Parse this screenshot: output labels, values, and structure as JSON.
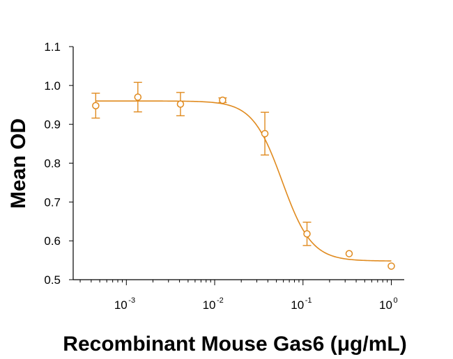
{
  "chart_data": {
    "type": "scatter",
    "title": "",
    "xlabel": "Recombinant Mouse Gas6 (μg/mL)",
    "ylabel": "Mean OD",
    "xscale": "log",
    "xlim": [
      0.00025,
      1.4
    ],
    "ylim": [
      0.5,
      1.1
    ],
    "yticks": [
      "0.5",
      "0.6",
      "0.7",
      "0.8",
      "0.9",
      "1.0",
      "1.1"
    ],
    "xticks": [
      {
        "base": "10",
        "exp": "-3",
        "value": 0.001
      },
      {
        "base": "10",
        "exp": "-2",
        "value": 0.01
      },
      {
        "base": "10",
        "exp": "-1",
        "value": 0.1
      },
      {
        "base": "10",
        "exp": "0",
        "value": 1
      }
    ],
    "grid": false,
    "legend": "none",
    "color": "#E08A1E",
    "points": [
      {
        "x": 0.00045,
        "y": 0.948,
        "err": 0.032
      },
      {
        "x": 0.00135,
        "y": 0.97,
        "err": 0.038
      },
      {
        "x": 0.0041,
        "y": 0.952,
        "err": 0.03
      },
      {
        "x": 0.0123,
        "y": 0.962,
        "err": 0.006
      },
      {
        "x": 0.037,
        "y": 0.876,
        "err": 0.055
      },
      {
        "x": 0.111,
        "y": 0.618,
        "err": 0.03
      },
      {
        "x": 0.333,
        "y": 0.567,
        "err": 0
      },
      {
        "x": 1.0,
        "y": 0.535,
        "err": 0
      }
    ],
    "fit_curve": {
      "model": "4PL",
      "top": 0.96,
      "bottom": 0.548,
      "ec50": 0.058,
      "hill": 2.6
    }
  }
}
